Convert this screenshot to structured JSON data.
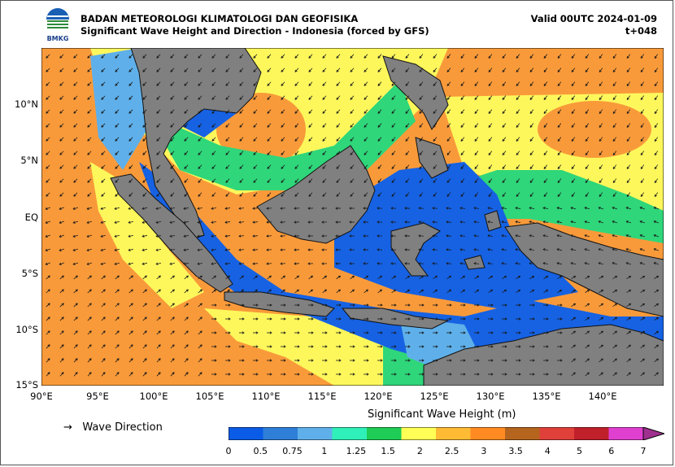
{
  "header": {
    "agency": "BADAN METEOROLOGI KLIMATOLOGI DAN GEOFISIKA",
    "subtitle": "Significant Wave Height and Direction - Indonesia (forced by GFS)",
    "valid": "Valid 00UTC 2024-01-09",
    "lead": "t+048",
    "logo_text": "BMKG"
  },
  "axes": {
    "lat_labels": [
      "10°N",
      "5°N",
      "EQ",
      "5°S",
      "10°S",
      "15°S"
    ],
    "lon_labels": [
      "90°E",
      "95°E",
      "100°E",
      "105°E",
      "110°E",
      "115°E",
      "120°E",
      "125°E",
      "130°E",
      "135°E",
      "140°E"
    ]
  },
  "legend": {
    "direction_symbol": "→",
    "direction_label": "Wave Direction"
  },
  "colorbar": {
    "title": "Significant Wave Height (m)",
    "levels": [
      "0",
      "0.5",
      "0.75",
      "1",
      "1.25",
      "1.5",
      "2",
      "2.5",
      "3",
      "3.5",
      "4",
      "5",
      "6",
      "7"
    ],
    "colors": [
      "#0a5ce6",
      "#2f7fd9",
      "#5fb0ea",
      "#2ff0b8",
      "#1fcc55",
      "#ffff55",
      "#ffbb33",
      "#ff8a22",
      "#b5651d",
      "#e0403a",
      "#c0202a",
      "#e040d0",
      "#a03090"
    ]
  },
  "colors": {
    "land": "#808080",
    "coast": "#111111",
    "arrow": "#1a1a1a",
    "orange": "#f99a3a",
    "yellow": "#fdf75c",
    "green": "#2fd67a",
    "blue": "#1662e3"
  }
}
